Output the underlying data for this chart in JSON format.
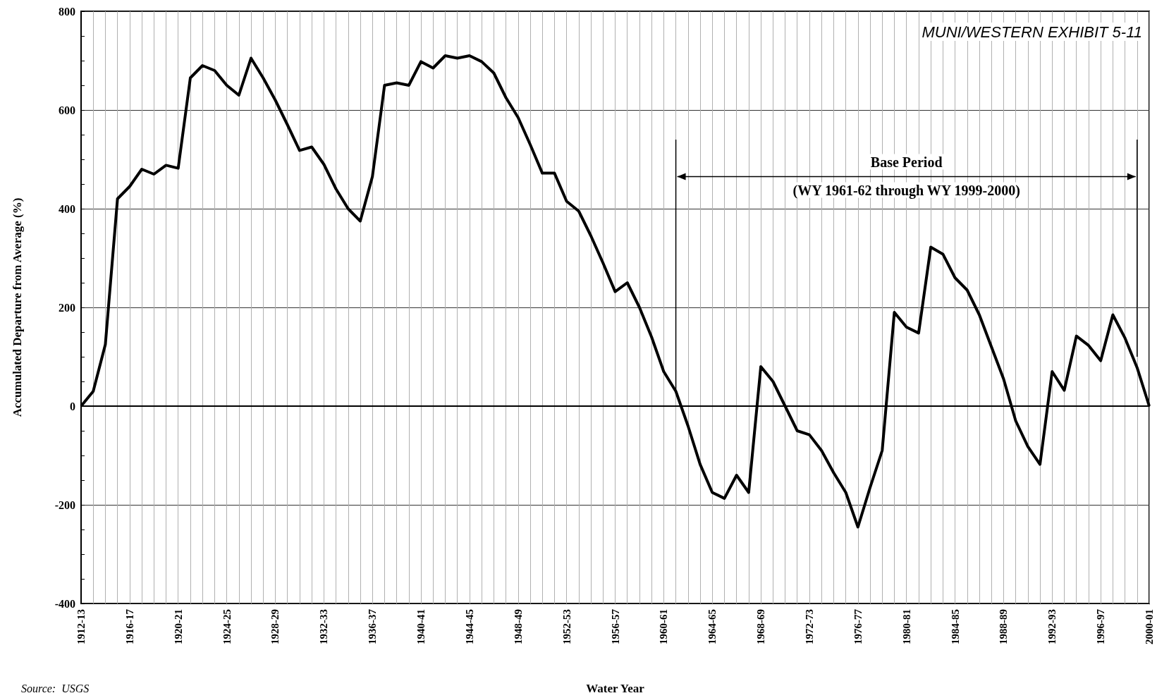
{
  "chart_data": {
    "type": "line",
    "xlabel": "Water Year",
    "ylabel": "Accumulated Departure from Average (%)",
    "categories": [
      "1912-13",
      null,
      null,
      null,
      "1916-17",
      null,
      null,
      null,
      "1920-21",
      null,
      null,
      null,
      "1924-25",
      null,
      null,
      null,
      "1928-29",
      null,
      null,
      null,
      "1932-33",
      null,
      null,
      null,
      "1936-37",
      null,
      null,
      null,
      "1940-41",
      null,
      null,
      null,
      "1944-45",
      null,
      null,
      null,
      "1948-49",
      null,
      null,
      null,
      "1952-53",
      null,
      null,
      null,
      "1956-57",
      null,
      null,
      null,
      "1960-61",
      null,
      null,
      null,
      "1964-65",
      null,
      null,
      null,
      "1968-69",
      null,
      null,
      null,
      "1972-73",
      null,
      null,
      null,
      "1976-77",
      null,
      null,
      null,
      "1980-81",
      null,
      null,
      null,
      "1984-85",
      null,
      null,
      null,
      "1988-89",
      null,
      null,
      null,
      "1992-93",
      null,
      null,
      null,
      "1996-97",
      null,
      null,
      null,
      "2000-01"
    ],
    "series": [
      {
        "color": "#000000",
        "values": [
          0,
          30,
          125,
          420,
          445,
          480,
          470,
          488,
          482,
          665,
          690,
          680,
          650,
          630,
          705,
          665,
          620,
          570,
          518,
          525,
          490,
          440,
          400,
          375,
          465,
          650,
          655,
          650,
          698,
          685,
          710,
          705,
          710,
          698,
          675,
          625,
          585,
          530,
          472,
          472,
          415,
          395,
          345,
          290,
          232,
          250,
          200,
          140,
          70,
          30,
          -40,
          -118,
          -175,
          -187,
          -140,
          -175,
          80,
          50,
          0,
          -50,
          -58,
          -90,
          -135,
          -175,
          -245,
          -165,
          -90,
          190,
          160,
          148,
          322,
          308,
          260,
          235,
          185,
          120,
          55,
          -30,
          -82,
          -118,
          70,
          32,
          142,
          123,
          92,
          185,
          138,
          78,
          0
        ]
      }
    ],
    "ylim": [
      -400,
      800
    ],
    "yticks": [
      -400,
      -200,
      0,
      200,
      400,
      600,
      800
    ],
    "grid": true,
    "marker": "none",
    "line_style": "solid",
    "annotations": [
      "MUNI/WESTERN EXHIBIT 5-11",
      "Base Period\n(WY 1961-62 through WY 1999-2000)",
      "Source:  USGS"
    ]
  }
}
